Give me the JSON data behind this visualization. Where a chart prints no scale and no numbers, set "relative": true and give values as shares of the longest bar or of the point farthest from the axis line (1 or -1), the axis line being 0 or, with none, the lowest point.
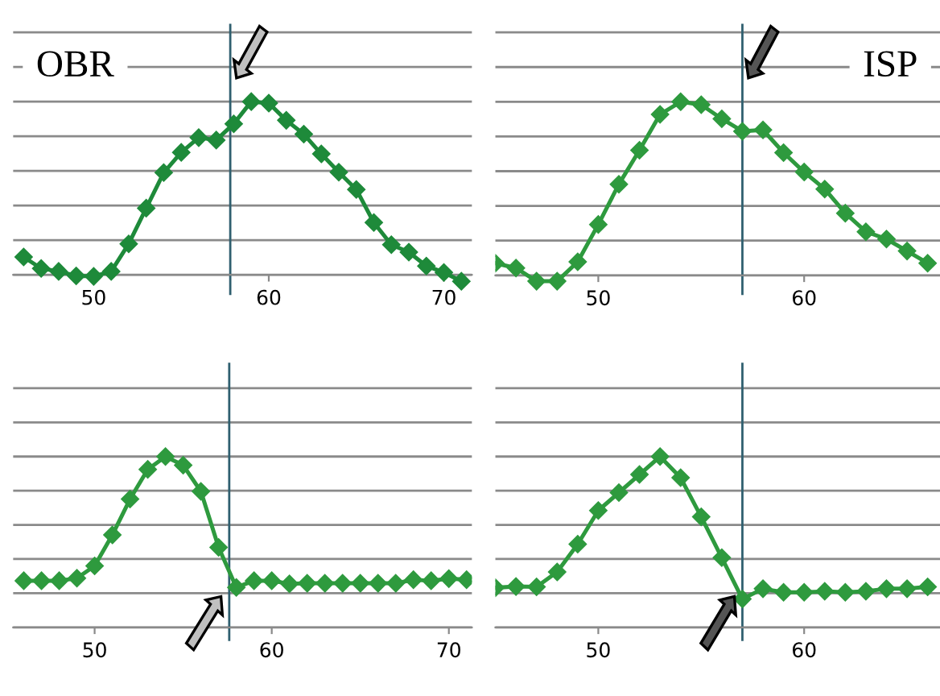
{
  "chart_data": [
    {
      "type": "line",
      "relative": true,
      "annotations": [
        "OBR"
      ],
      "xlim": [
        45.4,
        71.6
      ],
      "xticks": [
        50,
        60,
        70
      ],
      "grid": "y",
      "marker": "diamond",
      "line_style": "solid",
      "ref_lines": [
        {
          "axis": "x",
          "value": 57.8,
          "color": "#2f5f6f"
        }
      ],
      "series": [
        {
          "color": "#1e8a3a",
          "x": [
            46,
            47,
            48,
            49,
            50,
            51,
            52,
            53,
            54,
            55,
            56,
            57,
            58,
            59,
            60,
            61,
            62,
            63,
            64,
            65,
            66,
            67,
            68,
            69,
            70,
            71
          ],
          "values": [
            0.103,
            0.037,
            0.02,
            -0.006,
            -0.009,
            0.02,
            0.179,
            0.385,
            0.59,
            0.707,
            0.792,
            0.778,
            0.872,
            1,
            0.991,
            0.892,
            0.812,
            0.698,
            0.593,
            0.493,
            0.302,
            0.174,
            0.131,
            0.051,
            0.014,
            -0.037
          ]
        }
      ]
    },
    {
      "type": "line",
      "relative": true,
      "annotations": [
        "ISP"
      ],
      "xlim": [
        45,
        66.6
      ],
      "xticks": [
        50,
        60
      ],
      "grid": "y",
      "marker": "diamond",
      "line_style": "solid",
      "ref_lines": [
        {
          "axis": "x",
          "value": 57.0,
          "color": "#2f5f6f"
        }
      ],
      "series": [
        {
          "color": "#2e9a3e",
          "x": [
            45,
            46,
            47,
            48,
            49,
            50,
            51,
            52,
            53,
            54,
            55,
            56,
            57,
            58,
            59,
            60,
            61,
            62,
            63,
            64,
            65,
            66
          ],
          "values": [
            0.07,
            0.042,
            -0.034,
            -0.034,
            0.078,
            0.293,
            0.525,
            0.721,
            0.927,
            1,
            0.983,
            0.902,
            0.83,
            0.838,
            0.707,
            0.595,
            0.497,
            0.358,
            0.251,
            0.209,
            0.14,
            0.07
          ]
        }
      ]
    },
    {
      "type": "line",
      "relative": true,
      "xlim": [
        45.4,
        71.3
      ],
      "xticks": [
        50,
        60,
        70
      ],
      "grid": "y",
      "marker": "diamond",
      "line_style": "solid",
      "ref_lines": [
        {
          "axis": "x",
          "value": 57.6,
          "color": "#2f5f6f"
        }
      ],
      "series": [
        {
          "color": "#2e9a3e",
          "x": [
            46,
            47,
            48,
            49,
            50,
            51,
            52,
            53,
            54,
            55,
            56,
            57,
            58,
            59,
            60,
            61,
            62,
            63,
            64,
            65,
            66,
            67,
            68,
            69,
            70,
            71
          ],
          "values": [
            0.273,
            0.273,
            0.273,
            0.288,
            0.36,
            0.541,
            0.751,
            0.925,
            1,
            0.949,
            0.796,
            0.468,
            0.234,
            0.273,
            0.273,
            0.255,
            0.258,
            0.258,
            0.258,
            0.258,
            0.258,
            0.258,
            0.279,
            0.273,
            0.285,
            0.279
          ]
        }
      ]
    },
    {
      "type": "line",
      "relative": true,
      "xlim": [
        45,
        66.6
      ],
      "xticks": [
        50,
        60
      ],
      "grid": "y",
      "marker": "diamond",
      "line_style": "solid",
      "ref_lines": [
        {
          "axis": "x",
          "value": 57.0,
          "color": "#2f5f6f"
        }
      ],
      "series": [
        {
          "color": "#2e9a3e",
          "x": [
            45,
            46,
            47,
            48,
            49,
            50,
            51,
            52,
            53,
            54,
            55,
            56,
            57,
            58,
            59,
            60,
            61,
            62,
            63,
            64,
            65,
            66
          ],
          "values": [
            0.232,
            0.239,
            0.237,
            0.324,
            0.487,
            0.684,
            0.789,
            0.895,
            1,
            0.876,
            0.647,
            0.408,
            0.166,
            0.226,
            0.205,
            0.205,
            0.211,
            0.205,
            0.211,
            0.226,
            0.226,
            0.237
          ]
        }
      ]
    }
  ]
}
